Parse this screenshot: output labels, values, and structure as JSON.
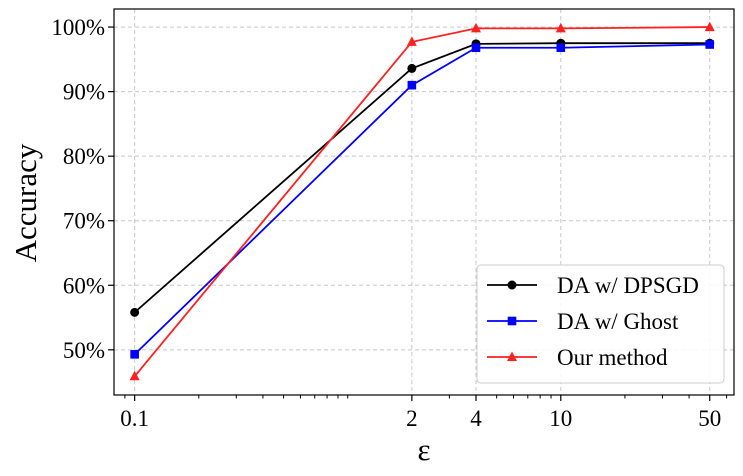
{
  "chart_data": {
    "type": "line",
    "title": "",
    "xlabel": "ε",
    "ylabel": "Accuracy",
    "x_scale": "log",
    "x": [
      0.1,
      2,
      4,
      10,
      50
    ],
    "x_tick_labels": [
      "0.1",
      "2",
      "4",
      "10",
      "50"
    ],
    "xlim": [
      0.08,
      65
    ],
    "ylim": [
      43,
      102.8
    ],
    "y_ticks": [
      50,
      60,
      70,
      80,
      90,
      100
    ],
    "y_tick_labels": [
      "50%",
      "60%",
      "70%",
      "80%",
      "90%",
      "100%"
    ],
    "grid": true,
    "legend_position": "bottom-right",
    "series": [
      {
        "name": "DA w/ DPSGD",
        "color": "#000000",
        "marker": "circle",
        "values": [
          55.8,
          93.6,
          97.4,
          97.5,
          97.5
        ]
      },
      {
        "name": "DA w/ Ghost",
        "color": "#0000ff",
        "marker": "square",
        "values": [
          49.3,
          91.0,
          96.8,
          96.8,
          97.3
        ]
      },
      {
        "name": "Our method",
        "color": "#ff2020",
        "marker": "triangle",
        "values": [
          45.9,
          97.7,
          99.8,
          99.8,
          100.0
        ]
      }
    ]
  }
}
